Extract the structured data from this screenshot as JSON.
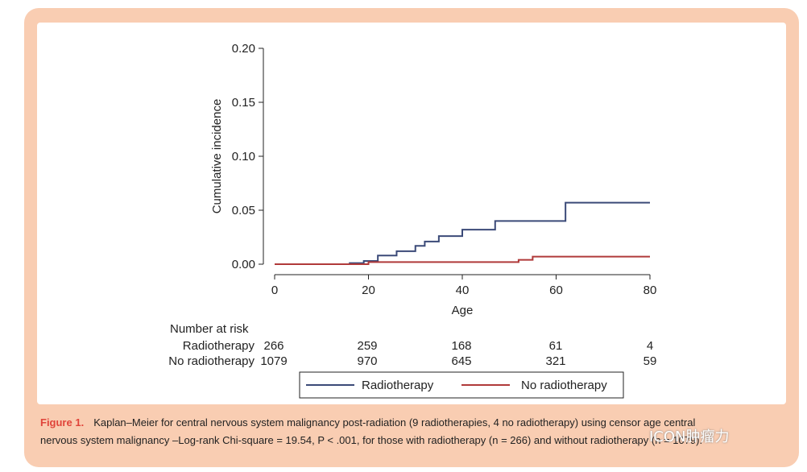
{
  "chart_data": {
    "type": "line",
    "title": "",
    "xlabel": "Age",
    "ylabel": "Cumulative incidence",
    "xlim": [
      0,
      80
    ],
    "ylim": [
      0,
      0.2
    ],
    "x_ticks": [
      0,
      20,
      40,
      60,
      80
    ],
    "y_ticks": [
      "0.00",
      "0.05",
      "0.10",
      "0.15",
      "0.20"
    ],
    "grid": false,
    "legend_position": "bottom",
    "series": [
      {
        "name": "Radiotherapy",
        "color": "#3b4a78",
        "step": true,
        "x": [
          0,
          16,
          19,
          22,
          26,
          30,
          32,
          35,
          40,
          47,
          62,
          80
        ],
        "y": [
          0,
          0.001,
          0.003,
          0.008,
          0.012,
          0.017,
          0.021,
          0.026,
          0.032,
          0.04,
          0.057,
          0.057
        ]
      },
      {
        "name": "No radiotherapy",
        "color": "#b03a3a",
        "step": true,
        "x": [
          0,
          20,
          52,
          55,
          80
        ],
        "y": [
          0,
          0.002,
          0.004,
          0.007,
          0.007
        ]
      }
    ],
    "risk_table": {
      "title": "Number at risk",
      "rows": [
        {
          "label": "Radiotherapy",
          "values": [
            "266",
            "259",
            "168",
            "61",
            "4"
          ]
        },
        {
          "label": "No radiotherapy",
          "values": [
            "1079",
            "970",
            "645",
            "321",
            "59"
          ]
        }
      ]
    }
  },
  "caption": {
    "label": "Figure 1.",
    "line1": "Kaplan–Meier for central nervous system malignancy post-radiation (9 radiotherapies, 4 no radiotherapy) using censor age central",
    "line2": "nervous system malignancy –Log-rank Chi-square = 19.54, P < .001, for those with radiotherapy (n = 266) and without radiotherapy (n = 1079)."
  },
  "watermark": "ICON肿瘤力"
}
